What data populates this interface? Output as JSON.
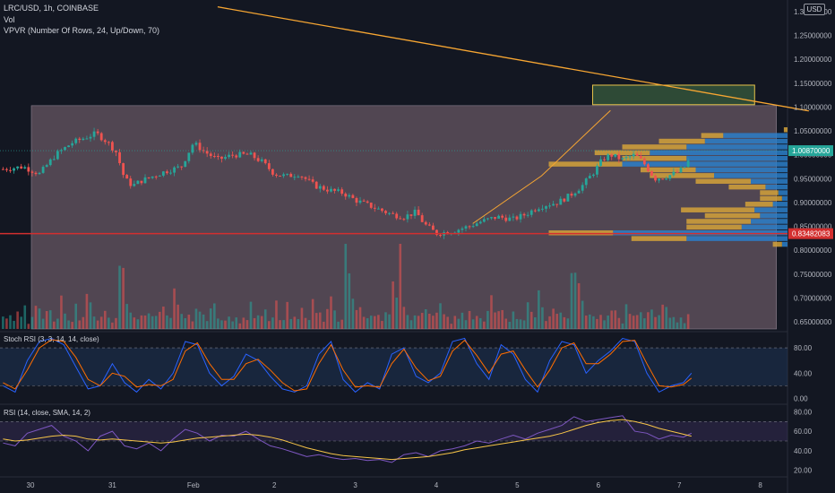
{
  "header": {
    "symbol_line": "LRC/USD, 1h, COINBASE",
    "vol_label": "Vol",
    "vpvr_label": "VPVR (Number Of Rows, 24, Up/Down, 70)"
  },
  "currency_label": "USD",
  "colors": {
    "background": "#131722",
    "up": "#26a69a",
    "down": "#ef5350",
    "trendline": "#f7a632",
    "horizontal_line": "#d32f2f",
    "range_box": "#5d4f5b",
    "stoch_k": "#2962ff",
    "stoch_d": "#ff6d00",
    "rsi": "#7e57c2",
    "rsi_sma": "#f7c548"
  },
  "chart_data": [
    {
      "type": "candlestick",
      "name": "price",
      "y_ticks": [
        "1.30000000",
        "1.25000000",
        "1.20000000",
        "1.15000000",
        "1.10000000",
        "1.05000000",
        "1.00000000",
        "0.95000000",
        "0.90000000",
        "0.85000000",
        "0.80000000",
        "0.75000000",
        "0.70000000",
        "0.65000000"
      ],
      "y_tick_values": [
        1.3,
        1.25,
        1.2,
        1.15,
        1.1,
        1.05,
        1.0,
        0.95,
        0.9,
        0.85,
        0.8,
        0.75,
        0.7,
        0.65
      ],
      "ylim": [
        0.635,
        1.315
      ],
      "x_tick_labels": [
        "30",
        "31",
        "Feb",
        "2",
        "3",
        "4",
        "5",
        "6",
        "7",
        "8"
      ],
      "x_tick_days": [
        0,
        1,
        2,
        3,
        4,
        5,
        6,
        7,
        8,
        9
      ],
      "last_price_label": "1.00870000",
      "last_price": 1.0087,
      "line_level_label": "0.83482083",
      "line_level": 0.83482,
      "range_box": {
        "start_day": 0,
        "end_day": 9.2,
        "price_top": 1.103,
        "price_bottom": 0.635
      },
      "target_box": {
        "start_day": 6.93,
        "end_day": 8.93,
        "price_top": 1.146,
        "price_bottom": 1.105
      },
      "trendline": {
        "start_day": 2.3,
        "start_price": 1.31,
        "end_day": 9.6,
        "end_price": 1.092
      },
      "target_path": [
        [
          5.45,
          0.856
        ],
        [
          6.3,
          0.956
        ],
        [
          7.15,
          1.093
        ]
      ],
      "price_path": [
        [
          -0.35,
          0.97
        ],
        [
          -0.1,
          0.975
        ],
        [
          0.1,
          0.96
        ],
        [
          0.3,
          1.0
        ],
        [
          0.5,
          1.025
        ],
        [
          0.65,
          1.035
        ],
        [
          0.8,
          1.045
        ],
        [
          0.95,
          1.025
        ],
        [
          1.05,
          1.005
        ],
        [
          1.15,
          0.95
        ],
        [
          1.25,
          0.935
        ],
        [
          1.35,
          0.945
        ],
        [
          1.5,
          0.955
        ],
        [
          1.65,
          0.965
        ],
        [
          1.85,
          0.975
        ],
        [
          2.0,
          1.025
        ],
        [
          2.15,
          1.005
        ],
        [
          2.3,
          0.99
        ],
        [
          2.5,
          1.0
        ],
        [
          2.7,
          1.0
        ],
        [
          2.85,
          0.985
        ],
        [
          3.0,
          0.96
        ],
        [
          3.15,
          0.955
        ],
        [
          3.3,
          0.96
        ],
        [
          3.5,
          0.935
        ],
        [
          3.7,
          0.925
        ],
        [
          3.85,
          0.92
        ],
        [
          4.0,
          0.905
        ],
        [
          4.15,
          0.895
        ],
        [
          4.3,
          0.885
        ],
        [
          4.45,
          0.875
        ],
        [
          4.6,
          0.87
        ],
        [
          4.75,
          0.88
        ],
        [
          4.85,
          0.855
        ],
        [
          5.0,
          0.835
        ],
        [
          5.2,
          0.84
        ],
        [
          5.4,
          0.85
        ],
        [
          5.55,
          0.86
        ],
        [
          5.75,
          0.87
        ],
        [
          5.95,
          0.865
        ],
        [
          6.1,
          0.875
        ],
        [
          6.25,
          0.89
        ],
        [
          6.35,
          0.895
        ],
        [
          6.5,
          0.9
        ],
        [
          6.65,
          0.915
        ],
        [
          6.8,
          0.935
        ],
        [
          6.95,
          0.965
        ],
        [
          7.05,
          0.99
        ],
        [
          7.15,
          1.0
        ],
        [
          7.3,
          0.99
        ],
        [
          7.45,
          1.0
        ],
        [
          7.55,
          0.985
        ],
        [
          7.7,
          0.95
        ],
        [
          7.85,
          0.955
        ],
        [
          8.0,
          0.965
        ],
        [
          8.1,
          0.98
        ],
        [
          8.15,
          1.009
        ]
      ]
    },
    {
      "type": "histogram",
      "name": "Vol",
      "seed_values": [
        0.15,
        0.12,
        0.18,
        0.1,
        0.22,
        0.14,
        0.3,
        0.12,
        0.16,
        0.25,
        0.45,
        0.18,
        0.2,
        0.35,
        0.15,
        0.12,
        0.4,
        0.22,
        0.18,
        0.14,
        0.3,
        0.2,
        0.16,
        0.6,
        0.3,
        0.18,
        0.14,
        0.25,
        0.35,
        0.2,
        0.15,
        0.12,
        1.0,
        0.7,
        0.5,
        0.35,
        0.25,
        0.2,
        0.18,
        0.15,
        0.3,
        0.2,
        0.16,
        0.22,
        0.28,
        0.15,
        0.12,
        0.45,
        0.3,
        0.25,
        0.18,
        0.2,
        0.15,
        0.35,
        0.22,
        0.18,
        0.16,
        0.3,
        0.4,
        0.2,
        0.15,
        0.12
      ]
    },
    {
      "type": "histogram",
      "name": "VPVR",
      "rows": [
        {
          "price": 1.052,
          "up": 0.02,
          "down": 0.0
        },
        {
          "price": 1.04,
          "up": 0.12,
          "down": 0.35
        },
        {
          "price": 1.028,
          "up": 0.25,
          "down": 0.45
        },
        {
          "price": 1.016,
          "up": 0.35,
          "down": 0.55
        },
        {
          "price": 1.004,
          "up": 0.3,
          "down": 0.75
        },
        {
          "price": 0.992,
          "up": 0.35,
          "down": 0.55
        },
        {
          "price": 0.98,
          "up": 0.4,
          "down": 0.9
        },
        {
          "price": 0.968,
          "up": 0.3,
          "down": 0.5
        },
        {
          "price": 0.956,
          "up": 0.35,
          "down": 0.4
        },
        {
          "price": 0.944,
          "up": 0.3,
          "down": 0.2
        },
        {
          "price": 0.932,
          "up": 0.2,
          "down": 0.12
        },
        {
          "price": 0.92,
          "up": 0.1,
          "down": 0.05
        },
        {
          "price": 0.908,
          "up": 0.12,
          "down": 0.03
        },
        {
          "price": 0.896,
          "up": 0.15,
          "down": 0.08
        },
        {
          "price": 0.884,
          "up": 0.4,
          "down": 0.18
        },
        {
          "price": 0.872,
          "up": 0.3,
          "down": 0.15
        },
        {
          "price": 0.86,
          "up": 0.35,
          "down": 0.2
        },
        {
          "price": 0.848,
          "up": 0.3,
          "down": 0.25
        },
        {
          "price": 0.836,
          "up": 0.35,
          "down": 0.95
        },
        {
          "price": 0.824,
          "up": 0.3,
          "down": 0.55
        },
        {
          "price": 0.812,
          "up": 0.05,
          "down": 0.03
        }
      ]
    },
    {
      "type": "line",
      "name": "Stoch RSI",
      "label": "Stoch RSI (3, 3, 14, 14, close)",
      "y_ticks": [
        "80.00",
        "40.00",
        "0.00"
      ],
      "y_tick_values": [
        80,
        40,
        0
      ],
      "ylim": [
        -5,
        100
      ],
      "band": [
        20,
        80
      ],
      "x": [
        -0.35,
        -0.2,
        -0.05,
        0.1,
        0.25,
        0.4,
        0.55,
        0.7,
        0.85,
        1.0,
        1.15,
        1.3,
        1.45,
        1.6,
        1.75,
        1.9,
        2.05,
        2.2,
        2.35,
        2.5,
        2.65,
        2.8,
        2.95,
        3.1,
        3.25,
        3.4,
        3.55,
        3.7,
        3.85,
        4.0,
        4.15,
        4.3,
        4.45,
        4.6,
        4.75,
        4.9,
        5.05,
        5.2,
        5.35,
        5.5,
        5.65,
        5.8,
        5.95,
        6.1,
        6.25,
        6.4,
        6.55,
        6.7,
        6.85,
        7.0,
        7.15,
        7.3,
        7.45,
        7.6,
        7.75,
        7.9,
        8.05,
        8.15
      ],
      "series": [
        {
          "name": "K",
          "values": [
            20,
            10,
            60,
            90,
            95,
            85,
            50,
            15,
            20,
            55,
            25,
            10,
            30,
            15,
            40,
            90,
            85,
            40,
            20,
            35,
            70,
            60,
            35,
            15,
            10,
            20,
            70,
            90,
            30,
            10,
            25,
            15,
            70,
            80,
            35,
            25,
            40,
            90,
            95,
            55,
            30,
            85,
            70,
            30,
            10,
            60,
            90,
            85,
            40,
            60,
            75,
            95,
            90,
            40,
            10,
            20,
            25,
            40
          ]
        },
        {
          "name": "D",
          "values": [
            25,
            15,
            45,
            80,
            93,
            90,
            65,
            30,
            20,
            40,
            35,
            18,
            22,
            20,
            30,
            75,
            88,
            55,
            30,
            30,
            55,
            62,
            45,
            25,
            12,
            15,
            55,
            85,
            45,
            18,
            20,
            18,
            55,
            78,
            48,
            28,
            35,
            75,
            92,
            68,
            40,
            70,
            75,
            45,
            18,
            45,
            80,
            88,
            55,
            55,
            70,
            90,
            92,
            55,
            20,
            18,
            22,
            32
          ]
        }
      ]
    },
    {
      "type": "line",
      "name": "RSI",
      "label": "RSI (14, close, SMA, 14, 2)",
      "y_ticks": [
        "80.00",
        "60.00",
        "40.00",
        "20.00"
      ],
      "y_tick_values": [
        80,
        60,
        40,
        20
      ],
      "ylim": [
        15,
        85
      ],
      "band": [
        50,
        70
      ],
      "x": [
        -0.35,
        -0.2,
        -0.05,
        0.1,
        0.25,
        0.4,
        0.55,
        0.7,
        0.85,
        1.0,
        1.15,
        1.3,
        1.45,
        1.6,
        1.75,
        1.9,
        2.05,
        2.2,
        2.35,
        2.5,
        2.65,
        2.8,
        2.95,
        3.1,
        3.25,
        3.4,
        3.55,
        3.7,
        3.85,
        4.0,
        4.15,
        4.3,
        4.45,
        4.6,
        4.75,
        4.9,
        5.05,
        5.2,
        5.35,
        5.5,
        5.65,
        5.8,
        5.95,
        6.1,
        6.25,
        6.4,
        6.55,
        6.7,
        6.85,
        7.0,
        7.15,
        7.3,
        7.45,
        7.6,
        7.75,
        7.9,
        8.05,
        8.15
      ],
      "series": [
        {
          "name": "RSI",
          "values": [
            48,
            45,
            58,
            62,
            66,
            55,
            50,
            40,
            55,
            60,
            45,
            42,
            48,
            40,
            52,
            62,
            58,
            50,
            56,
            55,
            60,
            52,
            45,
            42,
            38,
            34,
            36,
            33,
            31,
            32,
            30,
            31,
            28,
            36,
            38,
            34,
            40,
            42,
            45,
            50,
            48,
            52,
            56,
            52,
            58,
            62,
            66,
            75,
            70,
            72,
            74,
            76,
            60,
            58,
            52,
            56,
            54,
            58
          ]
        },
        {
          "name": "SMA",
          "values": [
            52,
            50,
            51,
            53,
            55,
            56,
            55,
            52,
            51,
            52,
            51,
            50,
            49,
            48,
            49,
            51,
            53,
            54,
            55,
            56,
            57,
            56,
            54,
            51,
            47,
            43,
            40,
            37,
            35,
            34,
            33,
            32,
            31,
            32,
            33,
            34,
            36,
            38,
            41,
            43,
            45,
            47,
            49,
            51,
            53,
            55,
            58,
            62,
            66,
            69,
            71,
            72,
            70,
            67,
            63,
            60,
            57,
            55
          ]
        }
      ]
    }
  ]
}
